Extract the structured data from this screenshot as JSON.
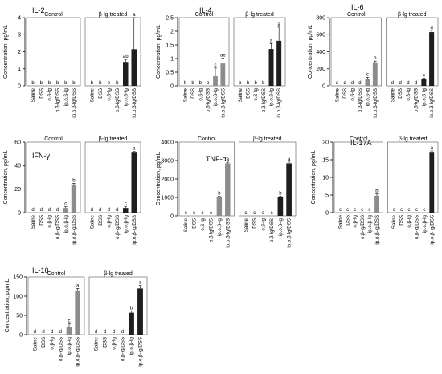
{
  "chart_data": [
    {
      "type": "bar",
      "title": "IL-2",
      "ylabel": "Concentration, pg/mL",
      "ylim": [
        0,
        4
      ],
      "yticks": [
        0,
        1,
        2,
        3,
        4
      ],
      "panels": [
        "Control",
        "β-lg treated"
      ],
      "categories": [
        "Saline",
        "DSS",
        "o.β-lg",
        "o.β-lg/DSS",
        "ip.o.β-lg",
        "ip.o.β-lg/DSS"
      ],
      "series": [
        {
          "values": [
            0,
            0,
            0,
            0,
            0,
            0
          ],
          "errors": [
            0,
            0,
            0,
            0,
            0,
            0
          ],
          "letters": [
            "b",
            "b",
            "b",
            "b",
            "b",
            "b"
          ]
        },
        {
          "values": [
            0,
            0,
            0,
            0,
            1.4,
            2.15
          ],
          "errors": [
            0,
            0,
            0,
            0,
            0.15,
            1.85
          ],
          "letters": [
            "b",
            "b",
            "b",
            "b",
            "ab",
            "a"
          ]
        }
      ]
    },
    {
      "type": "bar",
      "title": "IL-4",
      "ylabel": "Concentration, pg/mL",
      "ylim": [
        0,
        2.5
      ],
      "yticks": [
        0,
        0.5,
        1,
        1.5,
        2,
        2.5
      ],
      "panels": [
        "Control",
        "β-lg treated"
      ],
      "categories": [
        "Saline",
        "DSS",
        "o.β-lg",
        "o.β-lg/DSS",
        "ip.o.β-lg",
        "ip.o.β-lg/DSS"
      ],
      "series": [
        {
          "values": [
            0,
            0,
            0,
            0,
            0.35,
            0.82
          ],
          "errors": [
            0,
            0,
            0,
            0,
            0.3,
            0.2
          ],
          "letters": [
            "b",
            "b",
            "b",
            "b",
            "c",
            "ac"
          ]
        },
        {
          "values": [
            0,
            0,
            0,
            0,
            1.35,
            1.65
          ],
          "errors": [
            0,
            0,
            0,
            0,
            0.2,
            0.5
          ],
          "letters": [
            "b",
            "b",
            "b",
            "b",
            "a",
            "a"
          ]
        }
      ]
    },
    {
      "type": "bar",
      "title": "IL-6",
      "ylabel": "Concentration, pg/mL",
      "ylim": [
        0,
        800
      ],
      "yticks": [
        0,
        200,
        400,
        600,
        800
      ],
      "panels": [
        "Control",
        "β-lg treated"
      ],
      "categories": [
        "Saline",
        "DSS",
        "o.β-lg",
        "o.β-lg/DSS",
        "ip.o.β-lg",
        "ip.o.β-lg/DSS"
      ],
      "series": [
        {
          "values": [
            0,
            0,
            0,
            0,
            85,
            275
          ],
          "errors": [
            0,
            0,
            0,
            0,
            15,
            15
          ],
          "letters": [
            "d",
            "d",
            "d",
            "d",
            "c",
            "b"
          ]
        },
        {
          "values": [
            0,
            0,
            0,
            0,
            75,
            630
          ],
          "errors": [
            0,
            0,
            0,
            0,
            15,
            20
          ],
          "letters": [
            "d",
            "d",
            "d",
            "d",
            "c",
            "a"
          ]
        }
      ]
    },
    {
      "type": "bar",
      "title": "IFN-γ",
      "ylabel": "Concentration, pg/mL",
      "ylim": [
        0,
        60
      ],
      "yticks": [
        0,
        20,
        40,
        60
      ],
      "panels": [
        "Control",
        "β-lg treated"
      ],
      "categories": [
        "Saline",
        "DSS",
        "o.β-lg",
        "o.β-lg/DSS",
        "ip.o.β-lg",
        "ip.o.β-lg/DSS"
      ],
      "series": [
        {
          "values": [
            0,
            0,
            0,
            0,
            4,
            24
          ],
          "errors": [
            0,
            0,
            0,
            0,
            1,
            1
          ],
          "letters": [
            "d",
            "d",
            "d",
            "d",
            "c",
            "b"
          ]
        },
        {
          "values": [
            0,
            0,
            0,
            0,
            4,
            51
          ],
          "errors": [
            0,
            0,
            0,
            0,
            1,
            1
          ],
          "letters": [
            "d",
            "d",
            "d",
            "d",
            "c",
            "a"
          ]
        }
      ]
    },
    {
      "type": "bar",
      "title": "TNF-α",
      "ylabel": "Concentration, pg/mL",
      "ylim": [
        0,
        4000
      ],
      "yticks": [
        0,
        1000,
        2000,
        3000,
        4000
      ],
      "panels": [
        "Control",
        "β-lg treated"
      ],
      "categories": [
        "Saline",
        "DSS",
        "o.β-lg",
        "o.β-lg/DSS",
        "ip.o.β-lg",
        "ip.o.β-lg/DSS"
      ],
      "series": [
        {
          "values": [
            0,
            0,
            0,
            0,
            1000,
            2850
          ],
          "errors": [
            0,
            0,
            0,
            0,
            60,
            60
          ],
          "letters": [
            "c",
            "c",
            "c",
            "c",
            "b",
            "a"
          ]
        },
        {
          "values": [
            0,
            0,
            0,
            0,
            1000,
            2850
          ],
          "errors": [
            0,
            0,
            0,
            0,
            60,
            60
          ],
          "letters": [
            "c",
            "c",
            "c",
            "c",
            "b",
            "a"
          ]
        }
      ]
    },
    {
      "type": "bar",
      "title": "IL-17A",
      "ylabel": "Concentration, pg/mL",
      "ylim": [
        0,
        20
      ],
      "yticks": [
        0,
        5,
        10,
        15,
        20
      ],
      "panels": [
        "Control",
        "β-lg treated"
      ],
      "categories": [
        "Saline",
        "DSS",
        "o.β-lg",
        "o.β-lg/DSS",
        "ip.o.β-lg",
        "ip.o.β-lg/DSS"
      ],
      "series": [
        {
          "values": [
            0,
            0,
            0,
            0,
            0,
            4.8
          ],
          "errors": [
            0,
            0,
            0,
            0,
            0,
            0.5
          ],
          "letters": [
            "c",
            "c",
            "c",
            "c",
            "c",
            "b"
          ]
        },
        {
          "values": [
            0,
            0,
            0,
            0,
            0,
            17
          ],
          "errors": [
            0,
            0,
            0,
            0,
            0,
            0.5
          ],
          "letters": [
            "c",
            "c",
            "c",
            "c",
            "c",
            "a"
          ]
        }
      ]
    },
    {
      "type": "bar",
      "title": "IL-10",
      "ylabel": "Concentration, pg/mL",
      "ylim": [
        0,
        150
      ],
      "yticks": [
        0,
        50,
        100,
        150
      ],
      "panels": [
        "Control",
        "β-lg treated"
      ],
      "categories": [
        "Saline",
        "DSS",
        "o.β-lg",
        "o.β-lg/DSS",
        "ip.o.β-lg",
        "ip.o.β-lg/DSS"
      ],
      "series": [
        {
          "values": [
            0,
            0,
            0,
            0,
            20,
            115
          ],
          "errors": [
            0,
            0,
            0,
            0,
            8,
            5
          ],
          "letters": [
            "d",
            "d",
            "d",
            "d",
            "c",
            "a"
          ]
        },
        {
          "values": [
            0,
            0,
            0,
            0,
            57,
            120
          ],
          "errors": [
            0,
            0,
            0,
            0,
            4,
            8
          ],
          "letters": [
            "d",
            "d",
            "d",
            "d",
            "b",
            "a"
          ]
        }
      ]
    }
  ],
  "colors": {
    "control_bar": "#8c8c8c",
    "treated_bar": "#1e1e1e",
    "axis": "#000000",
    "panel_frame": "#555555"
  }
}
